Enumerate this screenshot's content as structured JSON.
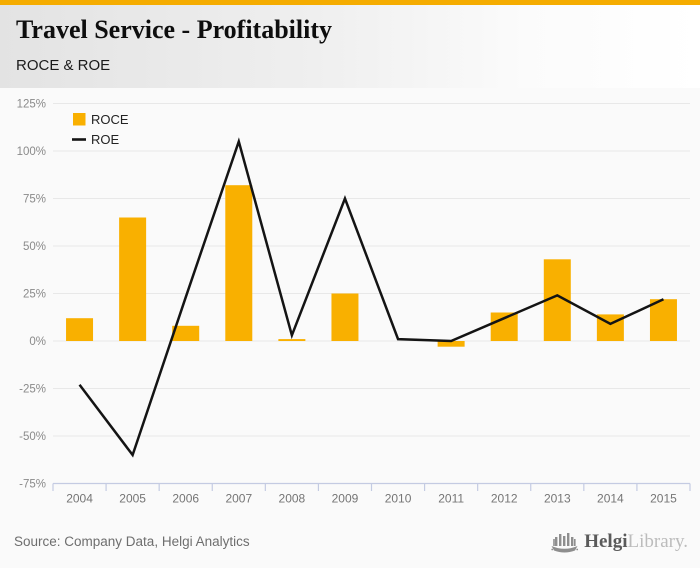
{
  "header": {
    "title": "Travel Service - Profitability",
    "subtitle": "ROCE & ROE"
  },
  "footer": {
    "source": "Source: Company Data, Helgi Analytics",
    "logo_bold": "Helgi",
    "logo_light": "Library.",
    "logo_icon": "helgi-ship-icon"
  },
  "colors": {
    "accent_top_bar": "#F5AC00",
    "bar_orange": "#F9B000",
    "line_black": "#141414",
    "grid": "#E8E8E8",
    "axis_blue_gray": "#C4CBE2",
    "ylabel_gray": "#8A8A8A",
    "xlabel_gray": "#757575"
  },
  "chart_data": {
    "type": "bar",
    "title": "Travel Service - Profitability",
    "subtitle": "ROCE & ROE",
    "categories": [
      "2004",
      "2005",
      "2006",
      "2007",
      "2008",
      "2009",
      "2010",
      "2011",
      "2012",
      "2013",
      "2014",
      "2015"
    ],
    "series": [
      {
        "name": "ROCE",
        "type": "bar",
        "color": "#F9B000",
        "values": [
          12,
          65,
          8,
          82,
          1,
          25,
          0,
          -3,
          15,
          43,
          14,
          22
        ]
      },
      {
        "name": "ROE",
        "type": "line",
        "color": "#141414",
        "values": [
          -23,
          -60,
          23,
          105,
          3,
          75,
          1,
          0,
          12,
          24,
          9,
          22
        ]
      }
    ],
    "ylabel": "",
    "xlabel": "",
    "ylim": [
      -75,
      125
    ],
    "ytick_step": 25,
    "ytick_format": "percent",
    "grid": true,
    "legend_position": "top-left"
  }
}
